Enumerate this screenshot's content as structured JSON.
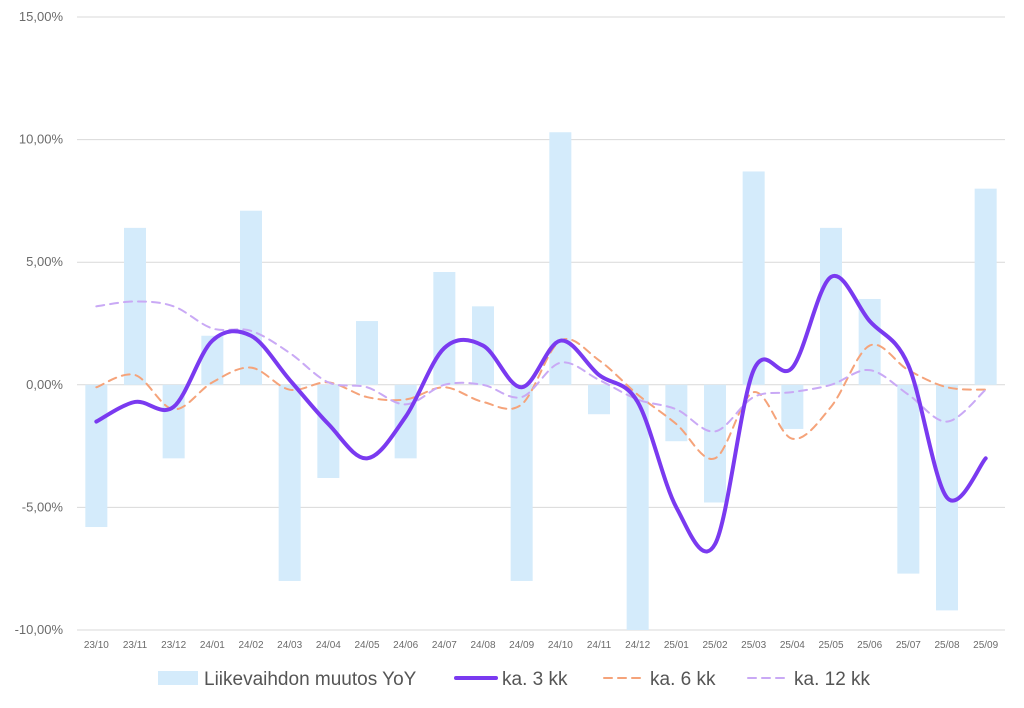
{
  "chart_data": {
    "type": "bar",
    "title": "",
    "xlabel": "",
    "ylabel": "",
    "ylim": [
      -10,
      15
    ],
    "yticks": [
      -10,
      -5,
      0,
      5,
      10,
      15
    ],
    "ytick_labels": [
      "-10,00%",
      "-5,00%",
      "0,00%",
      "5,00%",
      "10,00%",
      "15,00%"
    ],
    "grid": true,
    "legend_position": "bottom",
    "categories": [
      "23/10",
      "23/11",
      "23/12",
      "24/01",
      "24/02",
      "24/03",
      "24/04",
      "24/05",
      "24/06",
      "24/07",
      "24/08",
      "24/09",
      "24/10",
      "24/11",
      "24/12",
      "25/01",
      "25/02",
      "25/03",
      "25/04",
      "25/05",
      "25/06",
      "25/07",
      "25/08",
      "25/09"
    ],
    "series": [
      {
        "name": "Liikevaihdon muutos YoY",
        "kind": "bar",
        "color": "#d4ebfb",
        "values": [
          -5.8,
          6.4,
          -3.0,
          2.0,
          7.1,
          -8.0,
          -3.8,
          2.6,
          -3.0,
          4.6,
          3.2,
          -8.0,
          10.3,
          -1.2,
          -10.0,
          -2.3,
          -4.8,
          8.7,
          -1.8,
          6.4,
          3.5,
          -7.7,
          -9.2,
          8.0
        ]
      },
      {
        "name": "ka. 3 kk",
        "kind": "line",
        "style": "solid",
        "color": "#7a3af0",
        "values": [
          -1.5,
          -0.7,
          -0.9,
          1.8,
          2.0,
          0.2,
          -1.6,
          -3.0,
          -1.3,
          1.5,
          1.6,
          -0.1,
          1.8,
          0.4,
          -0.7,
          -5.0,
          -6.5,
          0.6,
          0.7,
          4.4,
          2.6,
          0.8,
          -4.6,
          -3.0
        ]
      },
      {
        "name": "ka. 6 kk",
        "kind": "line",
        "style": "dashed",
        "color": "#f5a37a",
        "values": [
          -0.1,
          0.4,
          -1.0,
          0.1,
          0.7,
          -0.2,
          0.1,
          -0.5,
          -0.6,
          -0.1,
          -0.7,
          -0.8,
          1.8,
          1.0,
          -0.4,
          -1.6,
          -3.0,
          -0.3,
          -2.2,
          -0.9,
          1.6,
          0.6,
          -0.1,
          -0.2
        ]
      },
      {
        "name": "ka. 12 kk",
        "kind": "line",
        "style": "dashed",
        "color": "#c9a9f5",
        "values": [
          3.2,
          3.4,
          3.2,
          2.3,
          2.2,
          1.3,
          0.1,
          -0.1,
          -0.8,
          0.0,
          0.0,
          -0.5,
          0.9,
          0.2,
          -0.6,
          -1.0,
          -1.9,
          -0.5,
          -0.3,
          0.0,
          0.6,
          -0.4,
          -1.5,
          -0.2
        ]
      }
    ]
  }
}
